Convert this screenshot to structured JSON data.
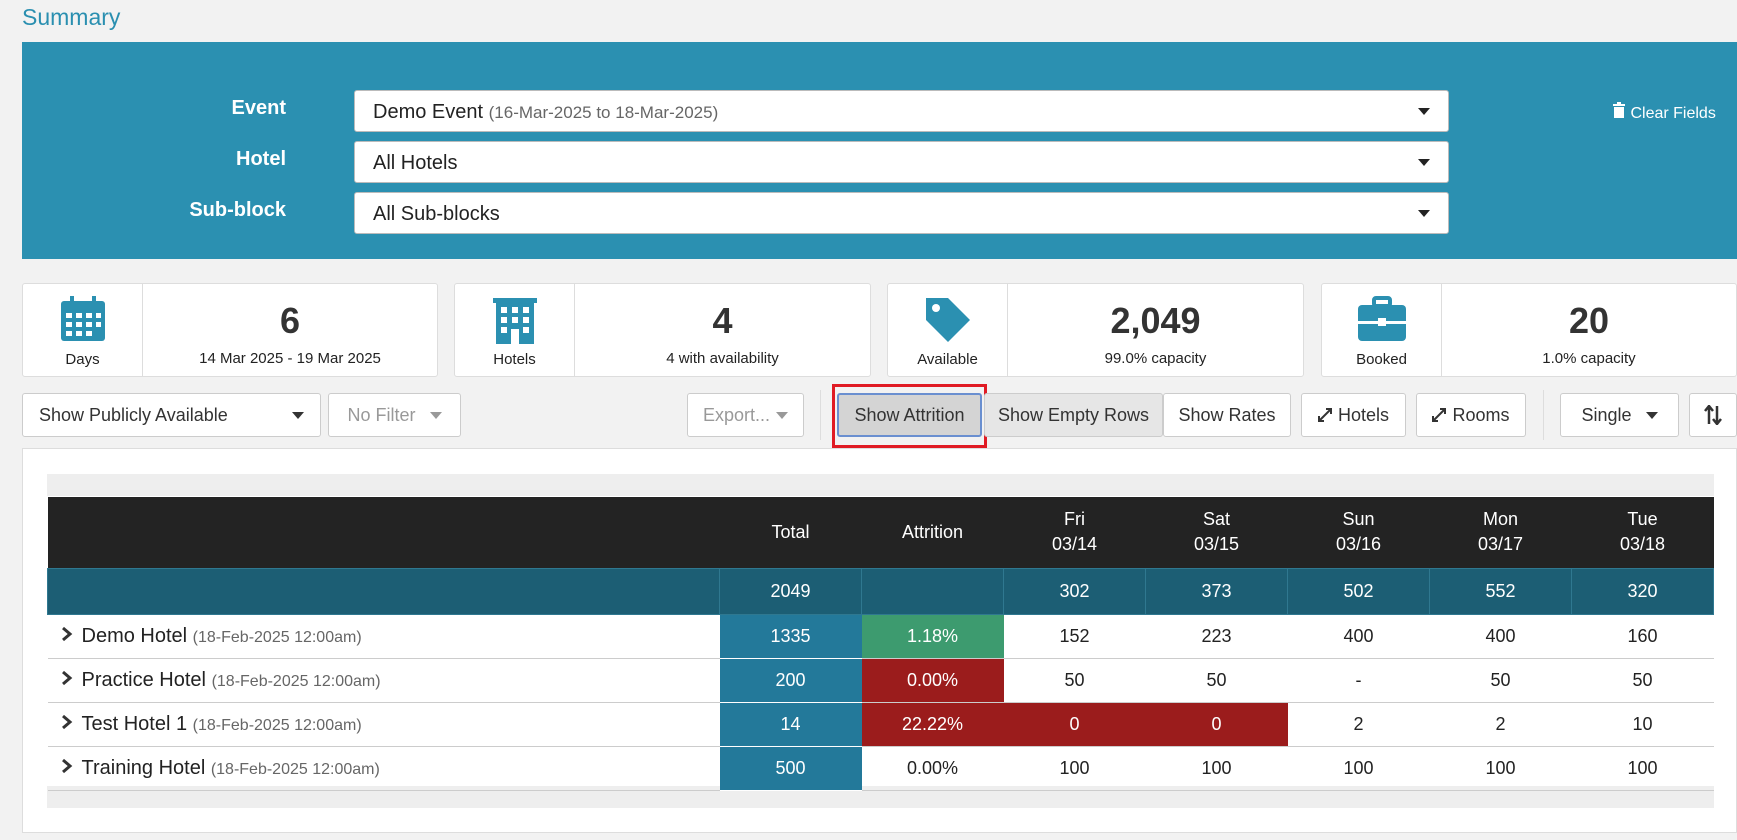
{
  "page": {
    "title": "Summary"
  },
  "filters": {
    "clear": "Clear Fields",
    "fields": [
      {
        "label": "Event",
        "value": "Demo Event",
        "detail": "(16-Mar-2025 to 18-Mar-2025)"
      },
      {
        "label": "Hotel",
        "value": "All Hotels"
      },
      {
        "label": "Sub-block",
        "value": "All Sub-blocks"
      }
    ]
  },
  "stats": [
    {
      "label": "Days",
      "value": "6",
      "detail": "14 Mar 2025 - 19 Mar 2025"
    },
    {
      "label": "Hotels",
      "value": "4",
      "detail": "4 with availability"
    },
    {
      "label": "Available",
      "value": "2,049",
      "detail": "99.0% capacity"
    },
    {
      "label": "Booked",
      "value": "20",
      "detail": "1.0% capacity"
    }
  ],
  "toolbar": {
    "availability": "Show Publicly Available",
    "filter": "No Filter",
    "export": "Export...",
    "attrition": "Show Attrition",
    "empty_rows": "Show Empty Rows",
    "rates": "Show Rates",
    "hotels": "Hotels",
    "rooms": "Rooms",
    "mode": "Single"
  },
  "table": {
    "headers": {
      "total": "Total",
      "attrition": "Attrition",
      "days": [
        {
          "day": "Fri",
          "date": "03/14"
        },
        {
          "day": "Sat",
          "date": "03/15"
        },
        {
          "day": "Sun",
          "date": "03/16"
        },
        {
          "day": "Mon",
          "date": "03/17"
        },
        {
          "day": "Tue",
          "date": "03/18"
        }
      ]
    },
    "totals": {
      "total": 2049,
      "days": [
        302,
        373,
        502,
        552,
        320
      ]
    },
    "rows": [
      {
        "name": "Demo Hotel",
        "date": "(18-Feb-2025 12:00am)",
        "total": 1335,
        "attrition": "1.18%",
        "days": [
          152,
          223,
          400,
          400,
          160
        ]
      },
      {
        "name": "Practice Hotel",
        "date": "(18-Feb-2025 12:00am)",
        "total": 200,
        "attrition": "0.00%",
        "days": [
          50,
          50,
          "-",
          50,
          50
        ]
      },
      {
        "name": "Test Hotel 1",
        "date": "(18-Feb-2025 12:00am)",
        "total": 14,
        "attrition": "22.22%",
        "days": [
          0,
          0,
          2,
          2,
          10
        ]
      },
      {
        "name": "Training Hotel",
        "date": "(18-Feb-2025 12:00am)",
        "total": 500,
        "attrition": "0.00%",
        "days": [
          100,
          100,
          100,
          100,
          100
        ]
      }
    ]
  }
}
